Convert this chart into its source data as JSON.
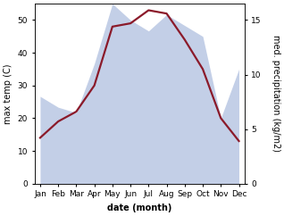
{
  "months": [
    "Jan",
    "Feb",
    "Mar",
    "Apr",
    "May",
    "Jun",
    "Jul",
    "Aug",
    "Sep",
    "Oct",
    "Nov",
    "Dec"
  ],
  "month_positions": [
    1,
    2,
    3,
    4,
    5,
    6,
    7,
    8,
    9,
    10,
    11,
    12
  ],
  "temp": [
    14,
    19,
    22,
    30,
    48,
    49,
    53,
    52,
    44,
    35,
    20,
    13
  ],
  "precip": [
    8.0,
    7.0,
    6.5,
    11.0,
    16.5,
    15.0,
    14.0,
    15.5,
    14.5,
    13.5,
    6.0,
    10.5
  ],
  "temp_ylim": [
    0,
    55
  ],
  "precip_ylim": [
    0,
    16.5
  ],
  "temp_yticks": [
    0,
    10,
    20,
    30,
    40,
    50
  ],
  "precip_yticks": [
    0,
    5,
    10,
    15
  ],
  "fill_color": "#aabbdd",
  "fill_alpha": 0.7,
  "line_color": "#8b1a2a",
  "line_width": 1.6,
  "bg_color": "#ffffff",
  "xlabel": "date (month)",
  "ylabel_left": "max temp (C)",
  "ylabel_right": "med. precipitation (kg/m2)",
  "label_fontsize": 7,
  "tick_fontsize": 6.5
}
